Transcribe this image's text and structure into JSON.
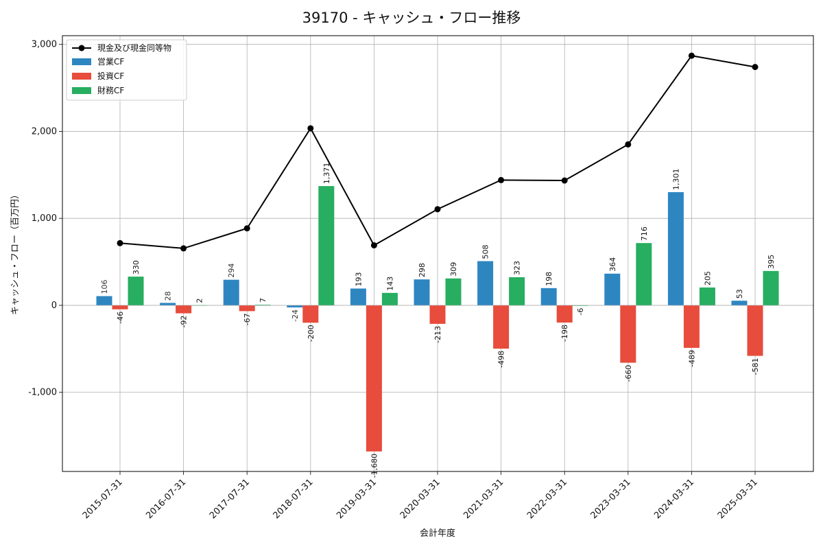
{
  "chart_data": {
    "type": "bar",
    "title": "39170 - キャッシュ・フロー推移",
    "xlabel": "会計年度",
    "ylabel": "キャッシュ・フロー（百万円）",
    "categories": [
      "2015-07-31",
      "2016-07-31",
      "2017-07-31",
      "2018-07-31",
      "2019-03-31",
      "2020-03-31",
      "2021-03-31",
      "2022-03-31",
      "2023-03-31",
      "2024-03-31",
      "2025-03-31"
    ],
    "series": [
      {
        "name": "営業CF",
        "kind": "bar",
        "color": "#2e86c1",
        "values": [
          106,
          28,
          294,
          -24,
          193,
          298,
          508,
          198,
          364,
          1301,
          53
        ],
        "labels": [
          "106",
          "28",
          "294",
          "-24",
          "193",
          "298",
          "508",
          "198",
          "364",
          "1,301",
          "53"
        ]
      },
      {
        "name": "投資CF",
        "kind": "bar",
        "color": "#e74c3c",
        "values": [
          -46,
          -92,
          -67,
          -200,
          -1680,
          -213,
          -498,
          -198,
          -660,
          -489,
          -581
        ],
        "labels": [
          "-46",
          "-92",
          "-67",
          "-200",
          "-1,680",
          "-213",
          "-498",
          "-198",
          "-660",
          "-489",
          "-581"
        ]
      },
      {
        "name": "財務CF",
        "kind": "bar",
        "color": "#27ae60",
        "values": [
          330,
          2,
          7,
          1371,
          143,
          309,
          323,
          -6,
          716,
          205,
          395
        ],
        "labels": [
          "330",
          "2",
          "7",
          "1,371",
          "143",
          "309",
          "323",
          "-6",
          "716",
          "205",
          "395"
        ]
      },
      {
        "name": "現金及び現金同等物",
        "kind": "line",
        "color": "#000000",
        "values": [
          715,
          655,
          885,
          2035,
          690,
          1105,
          1440,
          1435,
          1850,
          2870,
          2740
        ]
      }
    ],
    "yticks": [
      -1000,
      0,
      1000,
      2000,
      3000
    ],
    "ytick_labels": [
      "-1,000",
      "0",
      "1,000",
      "2,000",
      "3,000"
    ],
    "ylim": [
      -1910,
      3100
    ],
    "grid": true,
    "legend_position": "top-left"
  }
}
